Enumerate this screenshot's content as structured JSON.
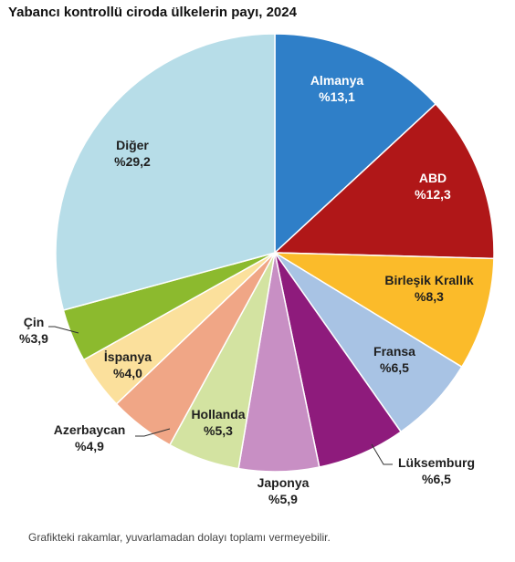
{
  "chart_data": {
    "type": "pie",
    "title": "Yabancı kontrollü ciroda ülkelerin payı, 2024",
    "footnote": "Grafikteki rakamlar, yuvarlamadan dolayı toplamı vermeyebilir.",
    "slices": [
      {
        "label": "Almanya",
        "value": 13.1,
        "value_label": "%13,1",
        "color": "#2f7fc8",
        "text_color": "#ffffff"
      },
      {
        "label": "ABD",
        "value": 12.3,
        "value_label": "%12,3",
        "color": "#b01718",
        "text_color": "#ffffff"
      },
      {
        "label": "Birleşik Krallık",
        "value": 8.3,
        "value_label": "%8,3",
        "color": "#fbbb2a",
        "text_color": "#1f1f1f"
      },
      {
        "label": "Fransa",
        "value": 6.5,
        "value_label": "%6,5",
        "color": "#a8c3e4",
        "text_color": "#1f1f1f"
      },
      {
        "label": "Lüksemburg",
        "value": 6.5,
        "value_label": "%6,5",
        "color": "#8e1b7c",
        "text_color": "#1f1f1f"
      },
      {
        "label": "Japonya",
        "value": 5.9,
        "value_label": "%5,9",
        "color": "#c88fc4",
        "text_color": "#1f1f1f"
      },
      {
        "label": "Hollanda",
        "value": 5.3,
        "value_label": "%5,3",
        "color": "#d3e3a1",
        "text_color": "#1f1f1f"
      },
      {
        "label": "Azerbaycan",
        "value": 4.9,
        "value_label": "%4,9",
        "color": "#f0a686",
        "text_color": "#1f1f1f"
      },
      {
        "label": "İspanya",
        "value": 4.0,
        "value_label": "%4,0",
        "color": "#fbe09c",
        "text_color": "#1f1f1f"
      },
      {
        "label": "Çin",
        "value": 3.9,
        "value_label": "%3,9",
        "color": "#8cba2e",
        "text_color": "#1f1f1f"
      },
      {
        "label": "Diğer",
        "value": 29.2,
        "value_label": "%29,2",
        "color": "#b7dde8",
        "text_color": "#1f1f1f"
      }
    ]
  }
}
